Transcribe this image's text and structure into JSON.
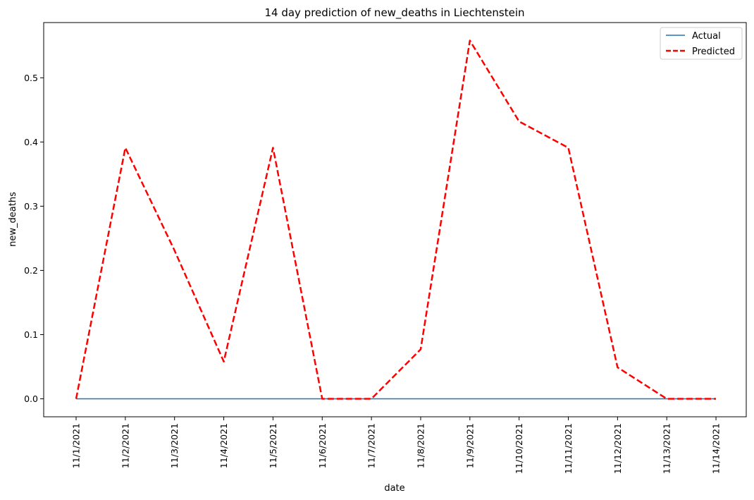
{
  "chart_data": {
    "type": "line",
    "title": "14 day prediction of new_deaths in Liechtenstein",
    "xlabel": "date",
    "ylabel": "new_deaths",
    "x": [
      "11/1/2021",
      "11/2/2021",
      "11/3/2021",
      "11/4/2021",
      "11/5/2021",
      "11/6/2021",
      "11/7/2021",
      "11/8/2021",
      "11/9/2021",
      "11/10/2021",
      "11/11/2021",
      "11/12/2021",
      "11/13/2021",
      "11/14/2021"
    ],
    "ylim": [
      -0.028,
      0.586
    ],
    "yticks": [
      0.0,
      0.1,
      0.2,
      0.3,
      0.4,
      0.5
    ],
    "yticklabels": [
      "0.0",
      "0.1",
      "0.2",
      "0.3",
      "0.4",
      "0.5"
    ],
    "grid": false,
    "legend_position": "top-right",
    "series": [
      {
        "name": "Actual",
        "color": "#1f77b4",
        "style": "solid",
        "values": [
          0,
          0,
          0,
          0,
          0,
          0,
          0,
          0,
          0,
          0,
          0,
          0,
          0,
          0
        ]
      },
      {
        "name": "Predicted",
        "color": "#ff0000",
        "style": "dashed",
        "values": [
          0.0,
          0.391,
          0.231,
          0.058,
          0.391,
          0.0,
          0.0,
          0.077,
          0.558,
          0.432,
          0.391,
          0.049,
          0.0,
          0.0
        ]
      }
    ]
  }
}
